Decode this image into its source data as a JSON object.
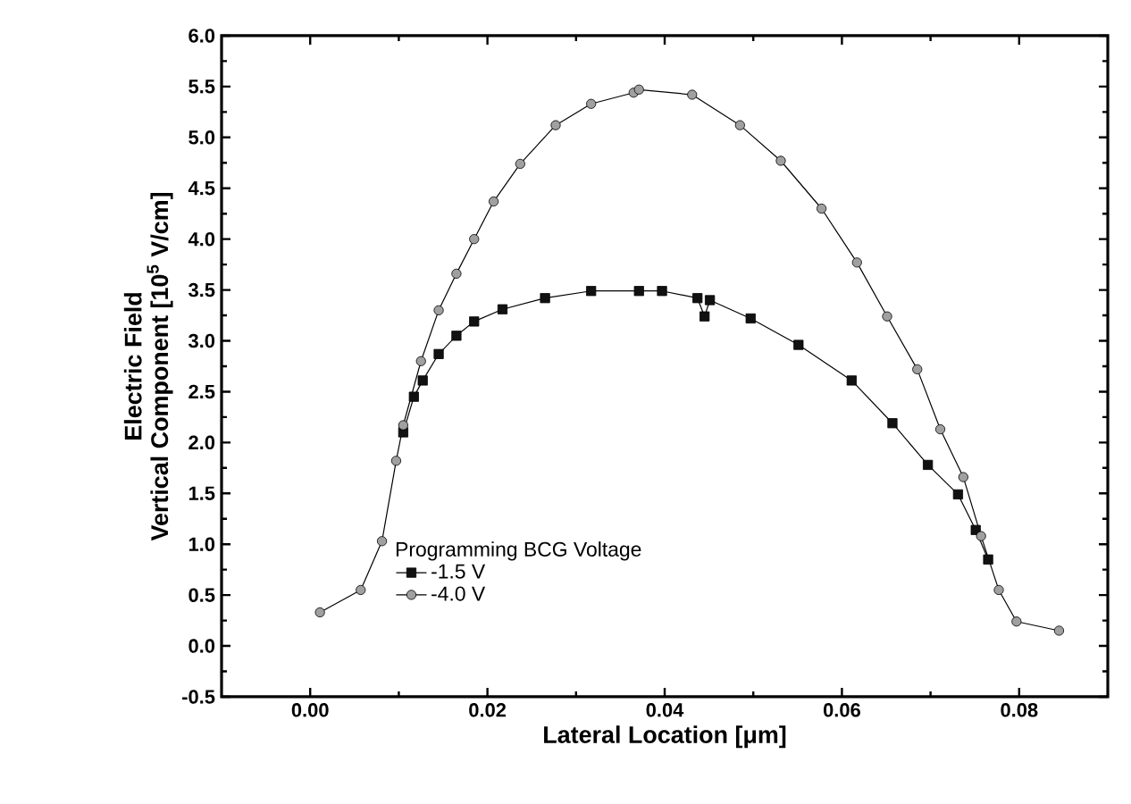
{
  "chart_data": {
    "type": "line",
    "xlabel": "Lateral Location [μm]",
    "ylabel": [
      "Electric Field",
      "Vertical Component [10$^{5}$ V/cm]"
    ],
    "legend_title": "Programming BCG Voltage",
    "legend": "bottom",
    "grid": false,
    "xlim": [
      -0.01,
      0.09
    ],
    "ylim": [
      -0.5,
      6.0
    ],
    "xticks": [
      {
        "value": 0,
        "label": "0.00"
      },
      {
        "value": 0.02,
        "label": "0.02"
      },
      {
        "value": 0.04,
        "label": "0.04"
      },
      {
        "value": 0.06,
        "label": "0.06"
      },
      {
        "value": 0.08,
        "label": "0.08"
      }
    ],
    "yticks": [
      {
        "value": -0.5,
        "label": "-0.5"
      },
      {
        "value": 0,
        "label": "0.0"
      },
      {
        "value": 0.5,
        "label": "0.5"
      },
      {
        "value": 1,
        "label": "1.0"
      },
      {
        "value": 1.5,
        "label": "1.5"
      },
      {
        "value": 2,
        "label": "2.0"
      },
      {
        "value": 2.5,
        "label": "2.5"
      },
      {
        "value": 3,
        "label": "3.0"
      },
      {
        "value": 3.5,
        "label": "3.5"
      },
      {
        "value": 4,
        "label": "4.0"
      },
      {
        "value": 4.5,
        "label": "4.5"
      },
      {
        "value": 5,
        "label": "5.0"
      },
      {
        "value": 5.5,
        "label": "5.5"
      },
      {
        "value": 6,
        "label": "6.0"
      }
    ],
    "series": [
      {
        "name": "-1.5 V",
        "color": "#111111",
        "marker": "square",
        "x": [
          0.0105,
          0.0117,
          0.0127,
          0.0145,
          0.0165,
          0.0185,
          0.0217,
          0.0265,
          0.0317,
          0.0371,
          0.0397,
          0.0437,
          0.0445,
          0.0451,
          0.0497,
          0.0551,
          0.0611,
          0.0657,
          0.0697,
          0.0731,
          0.0751,
          0.0765
        ],
        "values": [
          2.1,
          2.45,
          2.61,
          2.87,
          3.05,
          3.19,
          3.31,
          3.42,
          3.49,
          3.49,
          3.49,
          3.42,
          3.24,
          3.4,
          3.22,
          2.96,
          2.61,
          2.19,
          1.78,
          1.49,
          1.14,
          0.85
        ]
      },
      {
        "name": "-4.0 V",
        "color": "#a0a0a0",
        "marker": "circle",
        "x": [
          0.0011,
          0.0057,
          0.0081,
          0.0097,
          0.0105,
          0.0125,
          0.0145,
          0.0165,
          0.0185,
          0.0207,
          0.0237,
          0.0277,
          0.0317,
          0.0365,
          0.0371,
          0.0431,
          0.0485,
          0.0531,
          0.0577,
          0.0617,
          0.0651,
          0.0685,
          0.0711,
          0.0737,
          0.0757,
          0.0777,
          0.0797,
          0.0845
        ],
        "values": [
          0.33,
          0.55,
          1.03,
          1.82,
          2.17,
          2.8,
          3.3,
          3.66,
          4.0,
          4.37,
          4.74,
          5.12,
          5.33,
          5.44,
          5.47,
          5.42,
          5.12,
          4.77,
          4.3,
          3.77,
          3.24,
          2.72,
          2.13,
          1.66,
          1.08,
          0.55,
          0.24,
          0.15
        ]
      }
    ]
  }
}
